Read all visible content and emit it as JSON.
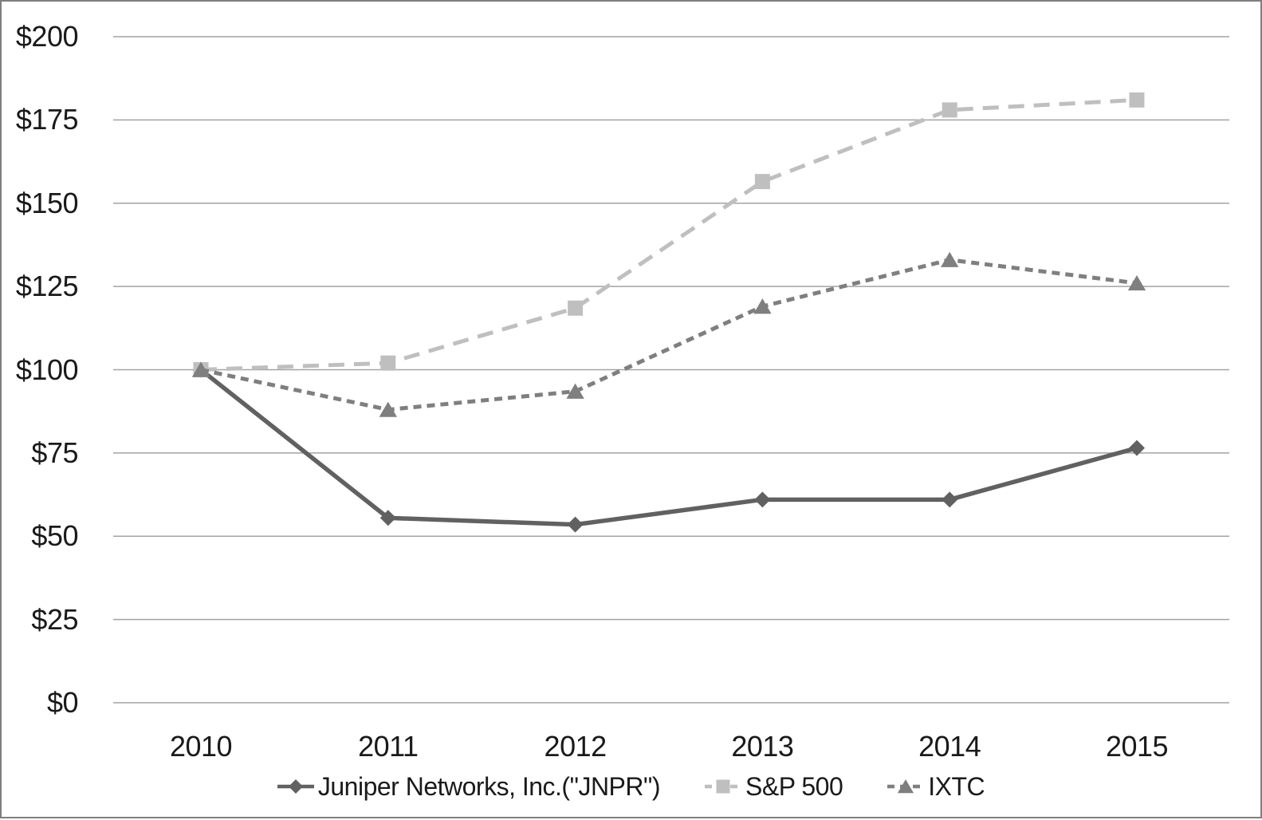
{
  "chart_data": {
    "type": "line",
    "title": "",
    "xlabel": "",
    "ylabel": "",
    "categories": [
      "2010",
      "2011",
      "2012",
      "2013",
      "2014",
      "2015"
    ],
    "series": [
      {
        "name": "Juniper Networks, Inc.(\"JNPR\")",
        "values": [
          100,
          55.5,
          53.5,
          61,
          61,
          76.5
        ],
        "color": "#616161",
        "marker": "diamond",
        "line_style": "solid"
      },
      {
        "name": "S&P 500",
        "values": [
          100,
          102,
          118.5,
          156.5,
          178,
          181
        ],
        "color": "#BFBFBF",
        "marker": "square",
        "line_style": "long-dash"
      },
      {
        "name": "IXTC",
        "values": [
          100,
          88,
          93.5,
          119,
          133,
          126
        ],
        "color": "#7F7F7F",
        "marker": "triangle",
        "line_style": "short-dash"
      }
    ],
    "ylim": [
      0,
      200
    ],
    "ytick_interval": 25,
    "ytick_labels": [
      "$0",
      "$25",
      "$50",
      "$75",
      "$100",
      "$125",
      "$150",
      "$175",
      "$200"
    ],
    "grid": "horizontal",
    "gridline_color": "#A3A3A3",
    "legend_position": "bottom",
    "text_color": "#1A1A1A",
    "background_color": "#FFFFFF",
    "border_color": "#7F7F7F"
  }
}
